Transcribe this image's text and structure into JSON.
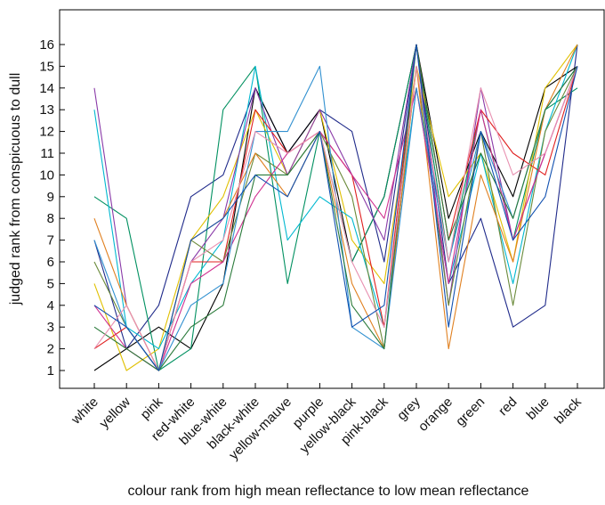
{
  "chart_data": {
    "type": "line",
    "xlabel": "colour rank from high mean reflectance to low mean reflectance",
    "ylabel": "judged rank from conspicuous to dull",
    "categories": [
      "white",
      "yellow",
      "pink",
      "red-white",
      "blue-white",
      "black-white",
      "yellow-mauve",
      "purple",
      "yellow-black",
      "pink-black",
      "grey",
      "orange",
      "green",
      "red",
      "blue",
      "black"
    ],
    "yticks": [
      1,
      2,
      3,
      4,
      5,
      6,
      7,
      8,
      9,
      10,
      11,
      12,
      13,
      14,
      15,
      16
    ],
    "ylim": [
      0,
      17
    ],
    "grid": false,
    "legend": "none",
    "series": [
      {
        "color": "#1f2a8a",
        "values": [
          7,
          2,
          4,
          9,
          10,
          14,
          11,
          13,
          12,
          6,
          16,
          5,
          8,
          3,
          4,
          16
        ]
      },
      {
        "color": "#000000",
        "values": [
          1,
          2,
          3,
          2,
          5,
          14,
          11,
          13,
          6,
          9,
          16,
          8,
          12,
          9,
          14,
          15
        ]
      },
      {
        "color": "#009060",
        "values": [
          9,
          8,
          1,
          2,
          13,
          15,
          5,
          12,
          6,
          9,
          16,
          6,
          13,
          7,
          13,
          14
        ]
      },
      {
        "color": "#e0c000",
        "values": [
          5,
          1,
          2,
          7,
          9,
          13,
          10,
          13,
          7,
          5,
          15,
          9,
          11,
          6,
          14,
          16
        ]
      },
      {
        "color": "#00b8d0",
        "values": [
          13,
          3,
          2,
          5,
          7,
          15,
          7,
          9,
          8,
          3,
          14,
          5,
          11,
          5,
          12,
          16
        ]
      },
      {
        "color": "#8a3aa8",
        "values": [
          14,
          4,
          1,
          6,
          8,
          14,
          10,
          13,
          10,
          7,
          16,
          4,
          14,
          7,
          11,
          15
        ]
      },
      {
        "color": "#e02020",
        "values": [
          2,
          3,
          1,
          6,
          6,
          13,
          11,
          12,
          10,
          3,
          16,
          7,
          13,
          11,
          10,
          15
        ]
      },
      {
        "color": "#6a8a3a",
        "values": [
          6,
          3,
          1,
          7,
          6,
          11,
          10,
          12,
          9,
          2,
          15,
          4,
          12,
          4,
          12,
          15
        ]
      },
      {
        "color": "#e08020",
        "values": [
          8,
          4,
          1,
          7,
          8,
          11,
          9,
          12,
          5,
          2,
          15,
          2,
          10,
          6,
          13,
          16
        ]
      },
      {
        "color": "#d03090",
        "values": [
          4,
          2,
          1,
          5,
          6,
          9,
          11,
          12,
          10,
          8,
          14,
          5,
          13,
          7,
          11,
          15
        ]
      },
      {
        "color": "#3090d0",
        "values": [
          7,
          3,
          1,
          4,
          5,
          12,
          12,
          15,
          3,
          2,
          14,
          6,
          12,
          8,
          13,
          15
        ]
      },
      {
        "color": "#2a7a3a",
        "values": [
          3,
          2,
          1,
          3,
          4,
          10,
          10,
          12,
          4,
          2,
          16,
          7,
          11,
          8,
          13,
          15
        ]
      },
      {
        "color": "#e890b0",
        "values": [
          2,
          4,
          1,
          6,
          7,
          12,
          11,
          12,
          6,
          3,
          15,
          6,
          14,
          10,
          11,
          15
        ]
      },
      {
        "color": "#1050b0",
        "values": [
          4,
          3,
          1,
          7,
          8,
          10,
          9,
          12,
          3,
          4,
          16,
          3,
          12,
          7,
          9,
          15
        ]
      }
    ]
  }
}
